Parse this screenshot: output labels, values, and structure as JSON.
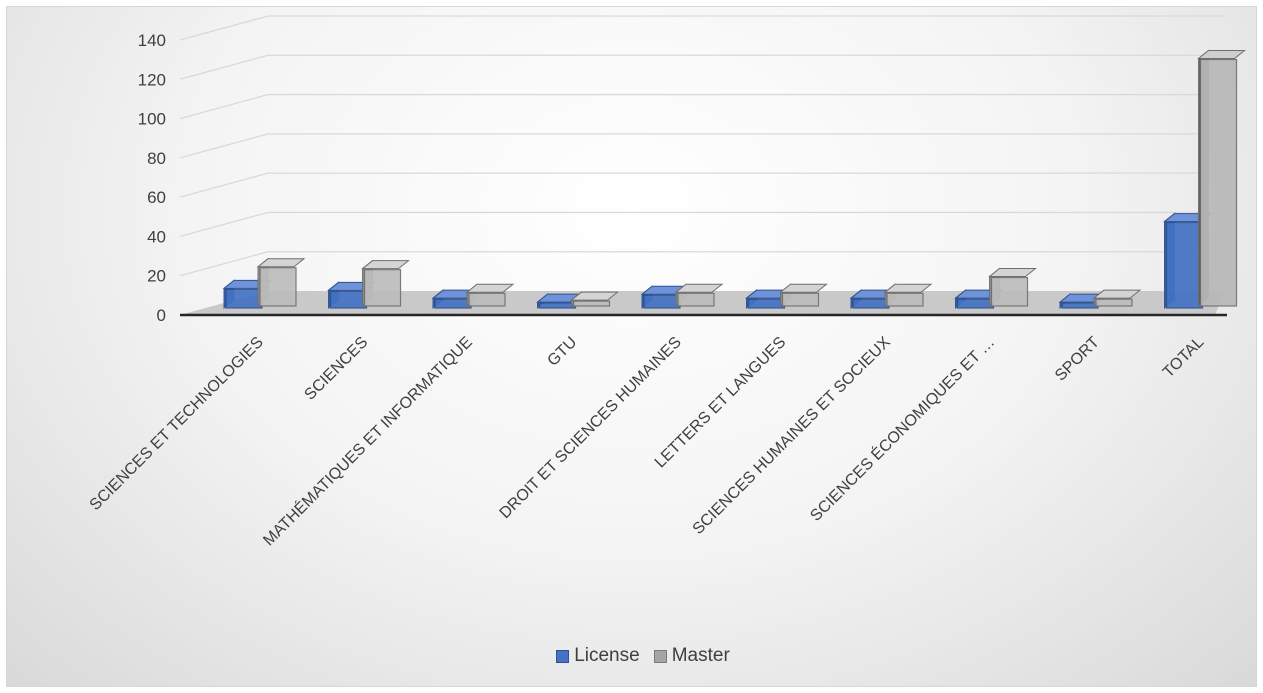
{
  "chart_data": {
    "type": "bar",
    "categories": [
      "SCIENCES ET TECHNOLOGIES",
      "SCIENCES",
      "MATHÉMATIQUES ET INFORMATIQUE",
      "GTU",
      "DROIT ET SCIENCES HUMAINES",
      "LETTERS ET LANGUES",
      "SCIENCES HUMAINES ET SOCIEUX",
      "SCIENCES ÉCONOMIQUES ET …",
      "SPORT",
      "TOTAL"
    ],
    "series": [
      {
        "name": "License",
        "values": [
          10,
          9,
          5,
          3,
          7,
          5,
          5,
          5,
          3,
          44
        ]
      },
      {
        "name": "Master",
        "values": [
          20,
          19,
          7,
          3,
          7,
          7,
          7,
          15,
          4,
          126
        ]
      }
    ],
    "ylim": [
      0,
      140
    ],
    "yticks": [
      "0",
      "20",
      "40",
      "60",
      "80",
      "100",
      "120",
      "140"
    ],
    "grid": true,
    "legend_position": "bottom",
    "colors": {
      "License": "#4472c4",
      "Master": "#a5a5a5"
    }
  }
}
